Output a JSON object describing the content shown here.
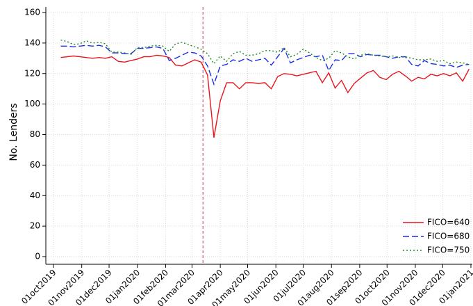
{
  "chart_data": {
    "type": "line",
    "y_label": "No. Lenders",
    "x": [
      "2019-10-09",
      "2019-10-16",
      "2019-10-23",
      "2019-10-30",
      "2019-11-06",
      "2019-11-13",
      "2019-11-20",
      "2019-11-27",
      "2019-12-04",
      "2019-12-11",
      "2019-12-18",
      "2019-12-25",
      "2020-01-01",
      "2020-01-08",
      "2020-01-15",
      "2020-01-22",
      "2020-01-29",
      "2020-02-05",
      "2020-02-12",
      "2020-02-19",
      "2020-02-26",
      "2020-03-04",
      "2020-03-11",
      "2020-03-18",
      "2020-03-25",
      "2020-04-01",
      "2020-04-08",
      "2020-04-15",
      "2020-04-22",
      "2020-04-29",
      "2020-05-06",
      "2020-05-13",
      "2020-05-20",
      "2020-05-27",
      "2020-06-03",
      "2020-06-10",
      "2020-06-17",
      "2020-06-24",
      "2020-07-01",
      "2020-07-08",
      "2020-07-15",
      "2020-07-22",
      "2020-07-29",
      "2020-08-05",
      "2020-08-12",
      "2020-08-19",
      "2020-08-26",
      "2020-09-02",
      "2020-09-09",
      "2020-09-16",
      "2020-09-23",
      "2020-09-30",
      "2020-10-07",
      "2020-10-14",
      "2020-10-21",
      "2020-10-28",
      "2020-11-04",
      "2020-11-11",
      "2020-11-18",
      "2020-11-25",
      "2020-12-02",
      "2020-12-09",
      "2020-12-16",
      "2020-12-23",
      "2020-12-30"
    ],
    "series": [
      {
        "name": "FICO=640",
        "color": "#e8141c",
        "dash": "solid",
        "values": [
          130.5,
          131,
          131.5,
          131,
          130.5,
          130,
          130.5,
          130,
          131,
          128,
          127.5,
          128.5,
          129.5,
          131,
          131,
          132,
          131.5,
          130.5,
          125.5,
          125,
          127,
          129,
          127.5,
          119,
          78,
          102,
          114,
          114,
          110,
          114,
          114,
          113.5,
          114,
          110,
          118,
          120,
          119.5,
          118.5,
          119.5,
          120.5,
          121.5,
          114,
          120.5,
          110.5,
          115.5,
          107.5,
          113.5,
          117,
          120.5,
          122,
          117.5,
          116,
          119.5,
          121.5,
          118.5,
          115,
          117.5,
          116.5,
          119.5,
          118.5,
          120,
          118.5,
          120.5,
          115,
          123
        ]
      },
      {
        "name": "FICO=680",
        "color": "#1a2ee6",
        "dash": "dashed",
        "values": [
          138,
          138,
          137.5,
          138,
          138.5,
          138,
          138.5,
          137.5,
          133.5,
          133.5,
          133,
          133,
          136.5,
          136.5,
          137,
          137.5,
          136.5,
          128.5,
          130,
          132,
          134,
          133.5,
          131.5,
          125,
          113,
          125,
          126,
          129,
          128,
          130,
          128,
          129,
          130,
          125.5,
          131,
          136.5,
          127,
          129,
          130.5,
          132,
          131,
          132,
          122,
          129,
          128.5,
          133,
          133,
          131,
          132.5,
          132,
          132,
          131,
          130,
          131,
          131,
          126,
          125,
          128.5,
          126.5,
          126,
          125,
          125.5,
          124,
          125.5,
          126
        ]
      },
      {
        "name": "FICO=750",
        "color": "#1e8a1e",
        "dash": "dotted",
        "values": [
          142,
          141,
          139,
          139.5,
          141.5,
          140,
          140.5,
          139.5,
          134,
          134,
          133.5,
          132.5,
          137,
          137,
          138,
          138.5,
          138,
          134.5,
          139.5,
          140.5,
          139,
          137.5,
          136,
          133,
          126.5,
          131.5,
          128,
          133,
          134.5,
          132,
          132,
          133,
          135,
          135,
          134,
          137,
          131,
          132.5,
          136,
          133.5,
          130.5,
          128.5,
          130,
          135,
          133.5,
          131,
          129.5,
          132,
          133,
          132,
          131.5,
          131,
          131.5,
          130.5,
          131,
          130,
          129,
          129,
          129.5,
          128,
          128.5,
          126.5,
          127.5,
          127,
          126
        ]
      }
    ],
    "reference_line": "2020-03-13",
    "reference_color": "#c8325a",
    "xlim": [
      "2019-10-01",
      "2021-01-01"
    ],
    "xticks": [
      {
        "value": "2019-10-01",
        "label": "01oct2019"
      },
      {
        "value": "2019-11-01",
        "label": "01nov2019"
      },
      {
        "value": "2019-12-01",
        "label": "01dec2019"
      },
      {
        "value": "2020-01-01",
        "label": "01jan2020"
      },
      {
        "value": "2020-02-01",
        "label": "01feb2020"
      },
      {
        "value": "2020-03-01",
        "label": "01mar2020"
      },
      {
        "value": "2020-04-01",
        "label": "01apr2020"
      },
      {
        "value": "2020-05-01",
        "label": "01may2020"
      },
      {
        "value": "2020-06-01",
        "label": "01jun2020"
      },
      {
        "value": "2020-07-01",
        "label": "01jul2020"
      },
      {
        "value": "2020-08-01",
        "label": "01aug2020"
      },
      {
        "value": "2020-09-01",
        "label": "01sep2020"
      },
      {
        "value": "2020-10-01",
        "label": "01oct2020"
      },
      {
        "value": "2020-11-01",
        "label": "01nov2020"
      },
      {
        "value": "2020-12-01",
        "label": "01dec2020"
      },
      {
        "value": "2021-01-01",
        "label": "01jan2021"
      }
    ],
    "ylim": [
      0,
      160
    ],
    "yticks": [
      0,
      20,
      40,
      60,
      80,
      100,
      120,
      140,
      160
    ],
    "grid": true,
    "legend": "lower-right"
  }
}
